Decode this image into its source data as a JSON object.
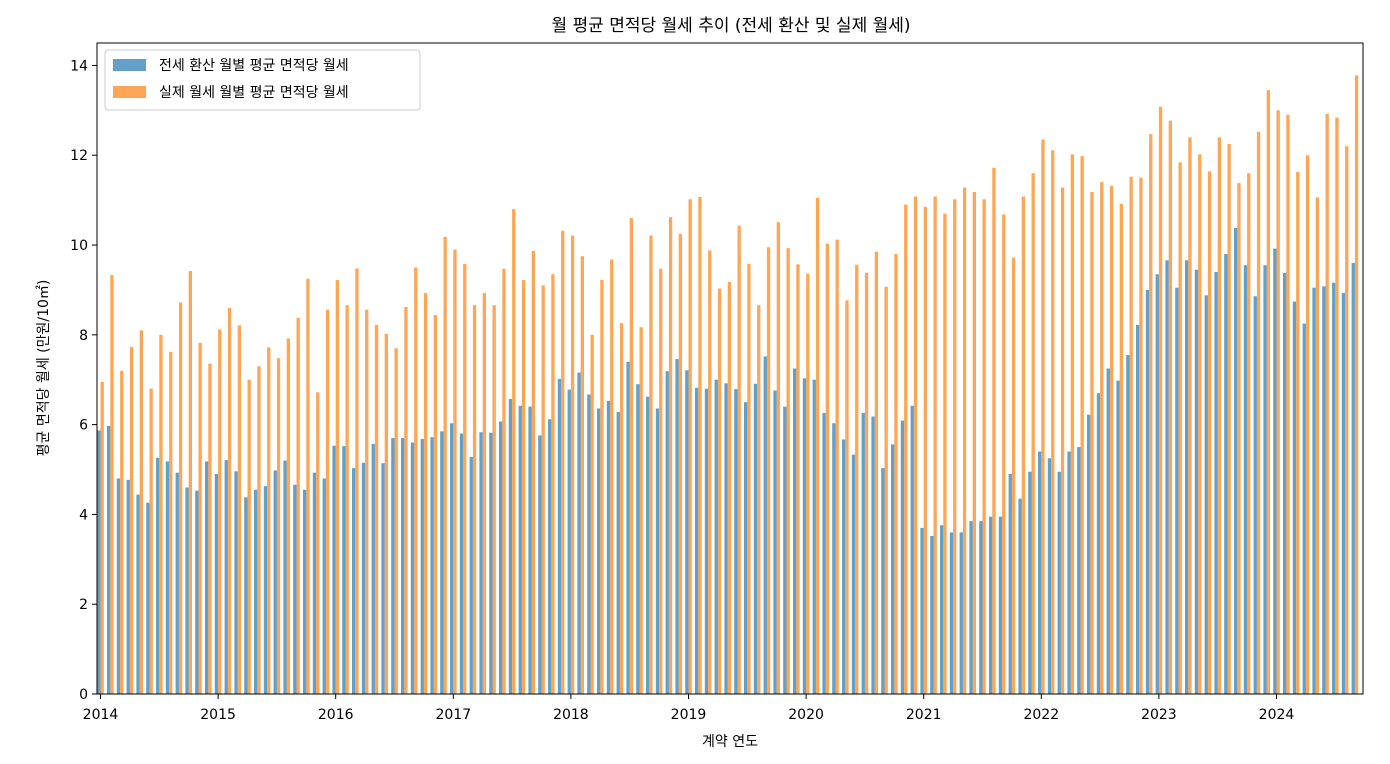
{
  "chart_data": {
    "type": "bar",
    "title": "월 평균 면적당 월세 추이 (전세 환산 및 실제 월세)",
    "xlabel": "계약 연도",
    "ylabel": "평균 면적당 월세 (만원/10㎡)",
    "ylim": [
      0,
      14.5
    ],
    "yticks": [
      0,
      2,
      4,
      6,
      8,
      10,
      12,
      14
    ],
    "xticks": [
      "2014",
      "2015",
      "2016",
      "2017",
      "2018",
      "2019",
      "2020",
      "2021",
      "2022",
      "2023",
      "2024"
    ],
    "start": "2014-01",
    "grid": false,
    "legend_position": "top-left",
    "series": [
      {
        "name": "전세 환산 월별 평균 면적당 월세",
        "color": "#1f77b4",
        "values": [
          5.87,
          5.97,
          4.8,
          4.77,
          4.44,
          4.26,
          5.26,
          5.18,
          4.93,
          4.6,
          4.53,
          5.18,
          4.9,
          5.21,
          4.96,
          4.38,
          4.55,
          4.63,
          4.98,
          5.2,
          4.66,
          4.55,
          4.93,
          4.8,
          5.53,
          5.52,
          5.03,
          5.15,
          5.57,
          5.14,
          5.7,
          5.7,
          5.6,
          5.68,
          5.72,
          5.85,
          6.03,
          5.8,
          5.28,
          5.83,
          5.82,
          6.07,
          6.57,
          6.42,
          6.4,
          5.76,
          6.12,
          7.02,
          6.78,
          7.16,
          6.67,
          6.36,
          6.53,
          6.28,
          7.4,
          6.9,
          6.62,
          6.36,
          7.19,
          7.46,
          7.21,
          6.82,
          6.8,
          7.0,
          6.92,
          6.79,
          6.5,
          6.91,
          7.52,
          6.76,
          6.4,
          7.25,
          7.03,
          7.0,
          6.26,
          6.03,
          5.67,
          5.33,
          6.26,
          6.18,
          5.03,
          5.56,
          6.09,
          6.42,
          3.7,
          3.52,
          3.76,
          3.6,
          3.6,
          3.85,
          3.85,
          3.95,
          3.95,
          4.9,
          4.35,
          4.95,
          5.4,
          5.25,
          4.95,
          5.4,
          5.5,
          6.22,
          6.7,
          7.25,
          6.98,
          7.55,
          8.22,
          9.0,
          9.35,
          9.66,
          9.05,
          9.66,
          9.45,
          8.88,
          9.4,
          9.8,
          10.38,
          9.55,
          8.86,
          9.55,
          9.92,
          9.38,
          8.74,
          8.25,
          9.05,
          9.08,
          9.16,
          8.93,
          9.6
        ]
      },
      {
        "name": "실제 월세 월별 평균 면적당 월세",
        "color": "#ff7f0e",
        "values": [
          6.95,
          9.33,
          7.2,
          7.73,
          8.1,
          6.8,
          8.0,
          7.62,
          8.72,
          9.42,
          7.82,
          7.36,
          8.12,
          8.6,
          8.21,
          7.0,
          7.3,
          7.72,
          7.48,
          7.92,
          8.38,
          9.25,
          6.72,
          8.56,
          9.22,
          8.66,
          9.48,
          8.56,
          8.22,
          8.02,
          7.7,
          8.62,
          9.5,
          8.93,
          8.44,
          10.18,
          9.9,
          9.58,
          8.66,
          8.93,
          8.66,
          9.47,
          10.8,
          9.22,
          9.87,
          9.1,
          9.35,
          10.32,
          10.21,
          9.75,
          8.0,
          9.22,
          9.68,
          8.26,
          10.6,
          8.17,
          10.21,
          9.47,
          10.62,
          10.25,
          11.02,
          11.07,
          9.88,
          9.03,
          9.18,
          10.43,
          9.58,
          8.66,
          9.95,
          10.51,
          9.93,
          9.57,
          9.36,
          11.05,
          10.03,
          10.12,
          8.77,
          9.56,
          9.38,
          9.85,
          9.07,
          9.8,
          10.9,
          11.08,
          10.85,
          11.08,
          10.7,
          11.02,
          11.28,
          11.18,
          11.02,
          11.72,
          10.68,
          9.72,
          11.08,
          11.6,
          12.35,
          12.11,
          11.28,
          12.02,
          11.98,
          11.18,
          11.4,
          11.32,
          10.92,
          11.52,
          11.5,
          12.47,
          13.08,
          12.77,
          11.84,
          12.4,
          12.02,
          11.64,
          12.4,
          12.25,
          11.38,
          11.6,
          12.52,
          13.45,
          13.0,
          12.9,
          11.63,
          12.0,
          11.06,
          12.92,
          12.84,
          12.2,
          13.78
        ]
      }
    ]
  }
}
